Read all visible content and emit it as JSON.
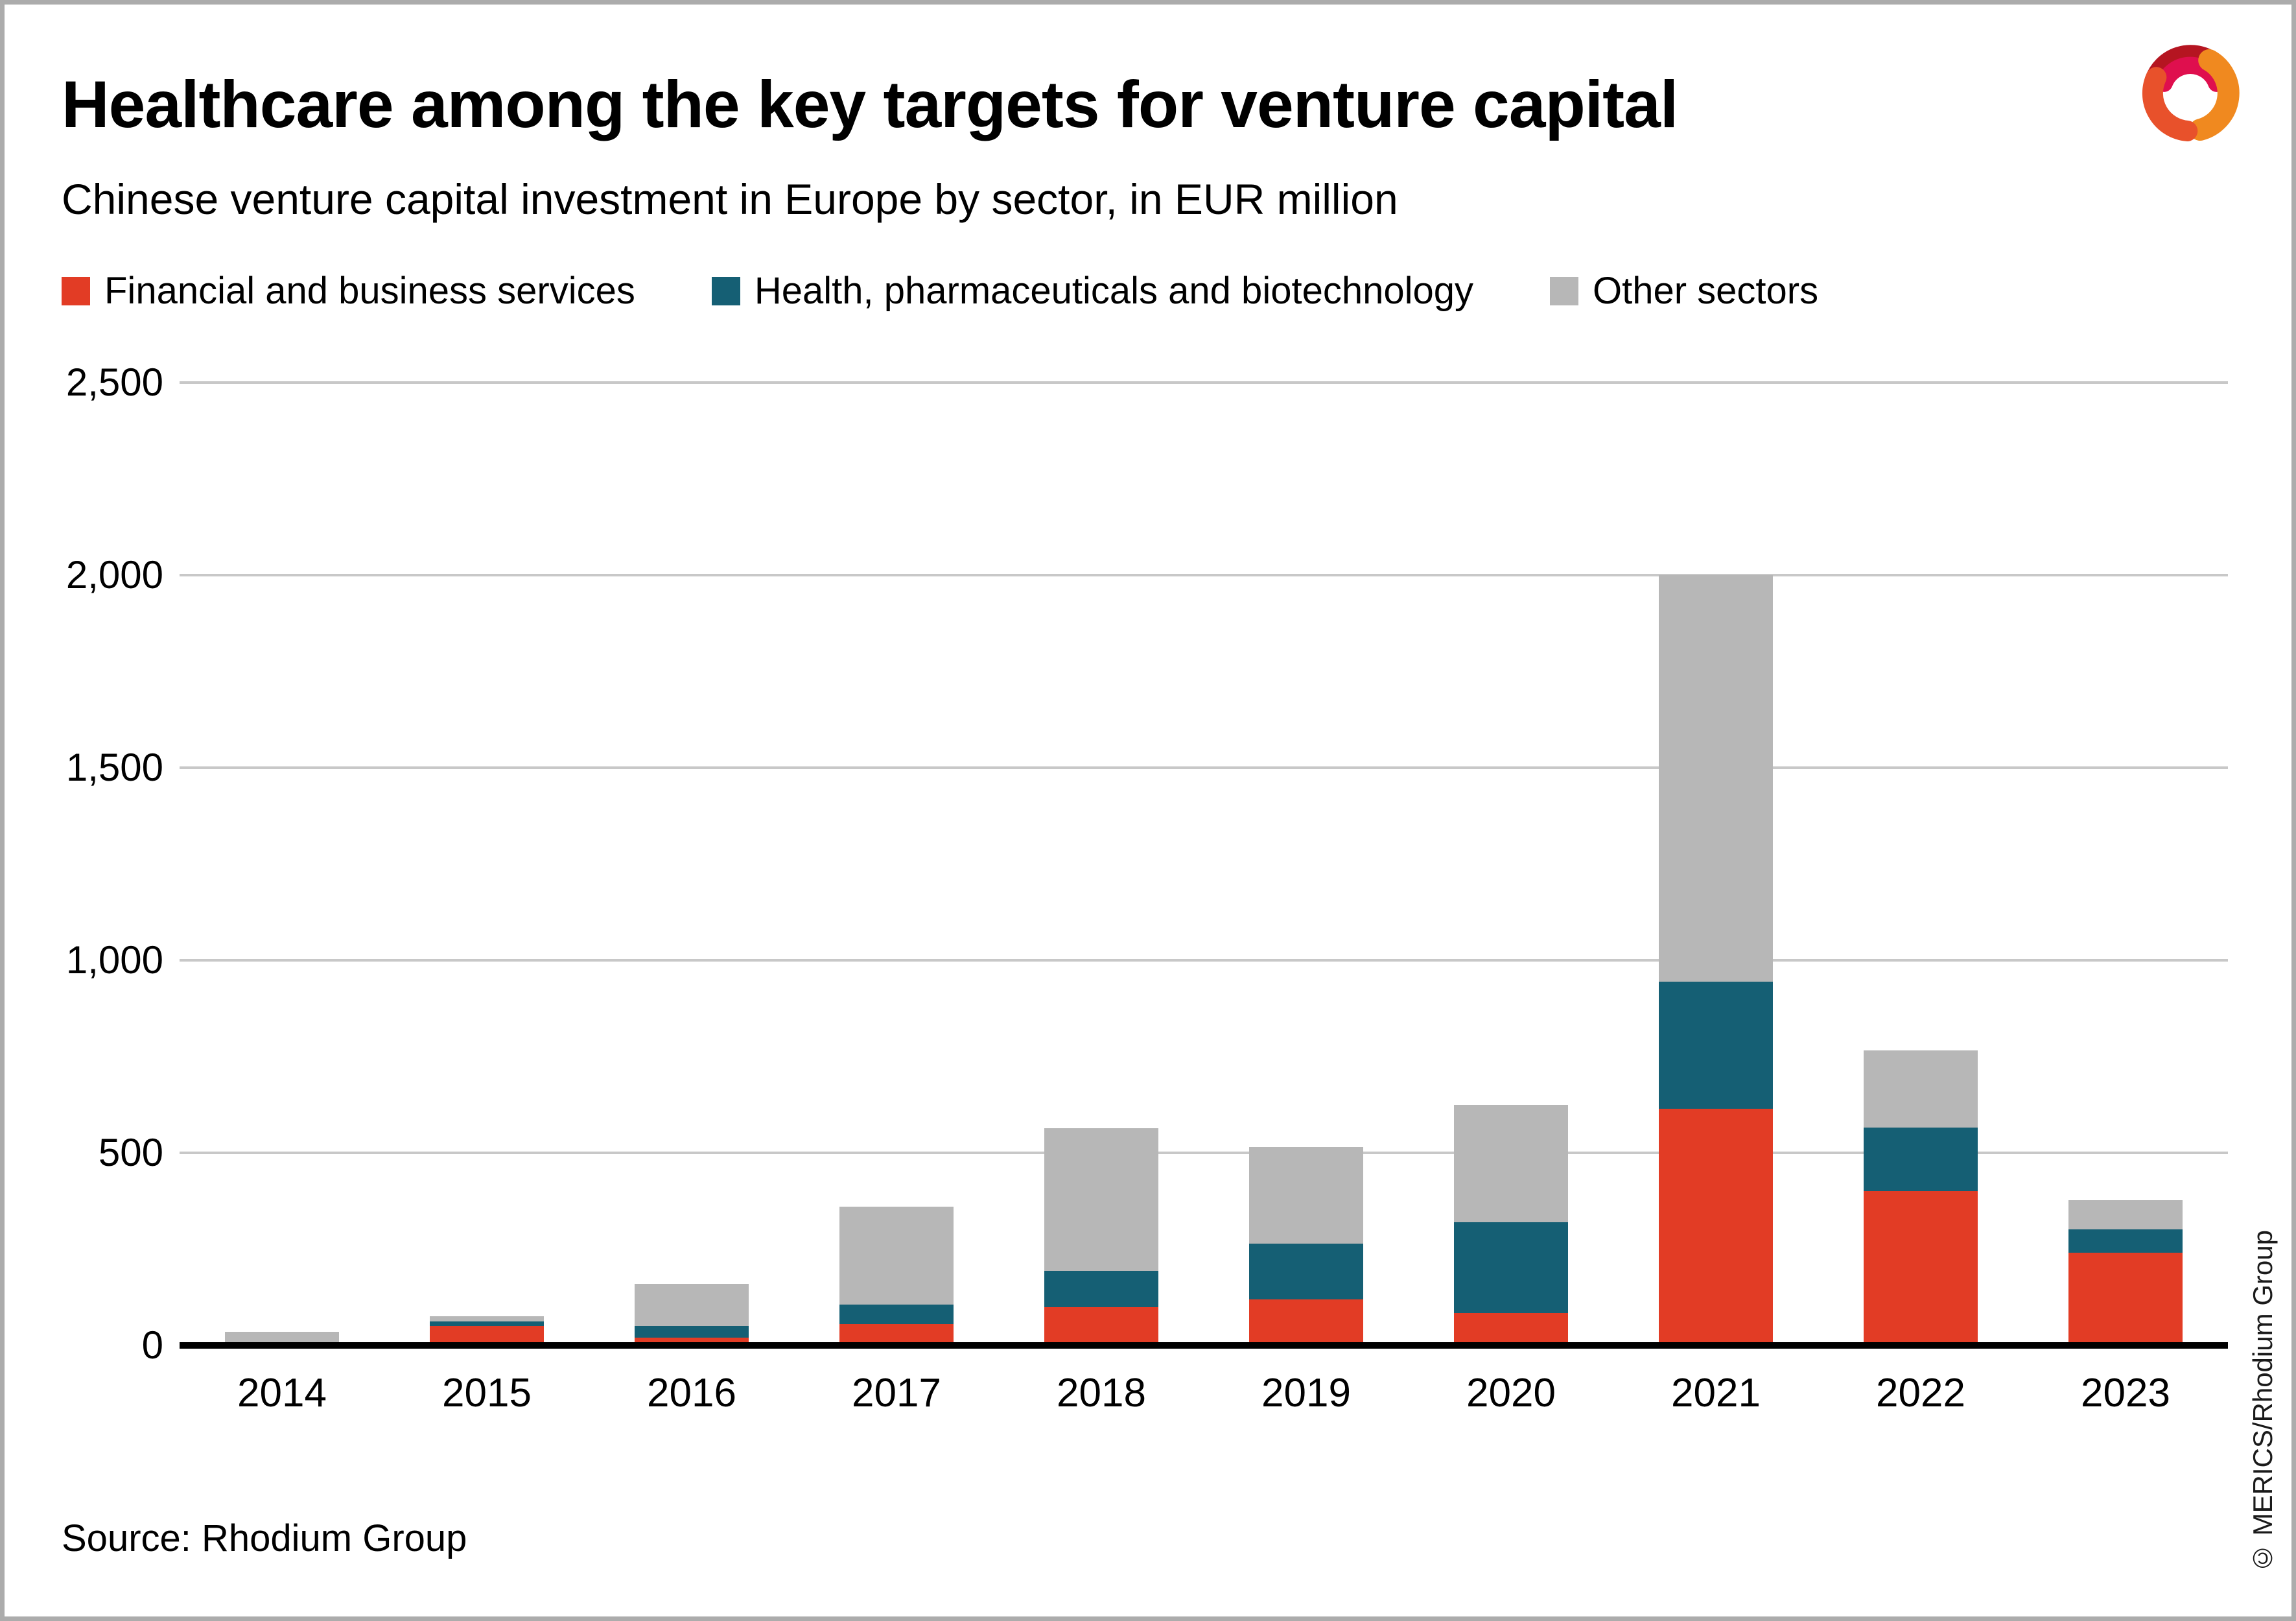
{
  "header": {
    "title": "Healthcare among the key targets for venture capital",
    "subtitle": "Chinese venture capital investment in Europe by sector, in EUR million"
  },
  "footer": {
    "source": "Source: Rhodium Group",
    "credit": "© MERICS/Rhodium Group"
  },
  "logo": {
    "name": "merics-logo",
    "colors": [
      "#B51521",
      "#DF0F4E",
      "#F0891F",
      "#E8512B"
    ]
  },
  "colors": {
    "grid": "#C8C8C8",
    "axis": "#000000",
    "frame": "#ACACAC",
    "background": "#FFFFFF"
  },
  "chart_data": {
    "type": "bar",
    "stacked": true,
    "title": "Healthcare among the key targets for venture capital",
    "subtitle": "Chinese venture capital investment in Europe by sector, in EUR million",
    "categories": [
      "2014",
      "2015",
      "2016",
      "2017",
      "2018",
      "2019",
      "2020",
      "2021",
      "2022",
      "2023"
    ],
    "series": [
      {
        "name": "Financial and business services",
        "color": "#E23C25",
        "values": [
          0,
          50,
          20,
          55,
          100,
          120,
          85,
          615,
          400,
          240
        ]
      },
      {
        "name": "Health, pharmaceuticals and biotechnology",
        "color": "#155F74",
        "values": [
          0,
          12,
          30,
          50,
          95,
          145,
          235,
          330,
          165,
          60
        ]
      },
      {
        "name": "Other sectors",
        "color": "#B7B7B7",
        "values": [
          35,
          13,
          110,
          255,
          370,
          250,
          305,
          1055,
          200,
          75
        ]
      }
    ],
    "totals": [
      35,
      75,
      160,
      360,
      565,
      515,
      625,
      2000,
      765,
      375
    ],
    "ylabel": "",
    "xlabel": "",
    "ylim": [
      0,
      2500
    ],
    "yticks": [
      0,
      500,
      1000,
      1500,
      2000,
      2500
    ],
    "grid": "horizontal",
    "legend_position": "top-left"
  }
}
